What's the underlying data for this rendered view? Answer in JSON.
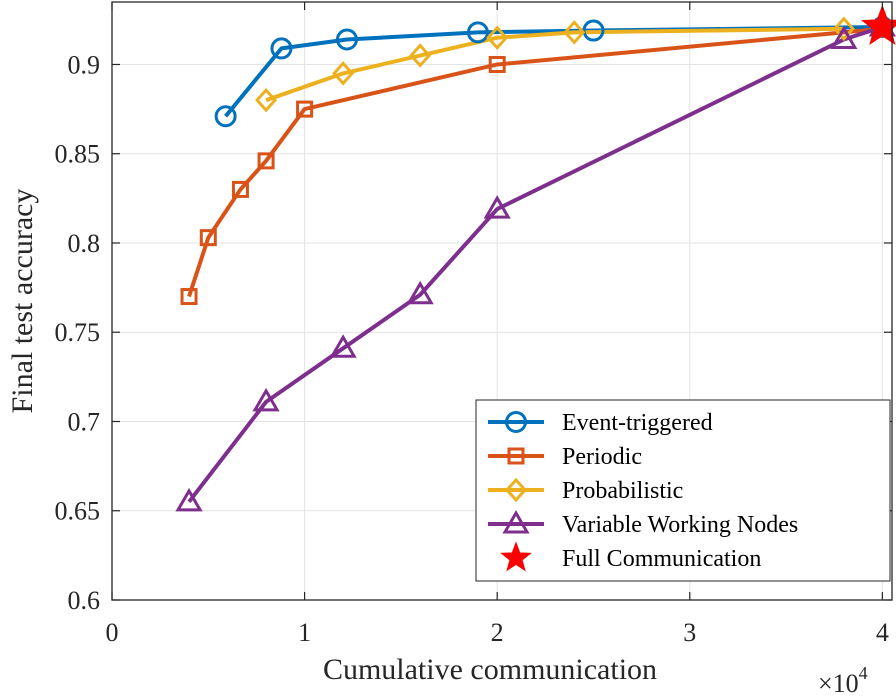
{
  "chart_data": {
    "type": "line",
    "xlabel": "Cumulative communication",
    "ylabel": "Final test accuracy",
    "x_multiplier": {
      "base": "×10",
      "exponent": "4"
    },
    "xlim": [
      0,
      4.05
    ],
    "ylim": [
      0.6,
      0.935
    ],
    "x_ticks": [
      0,
      1,
      2,
      3,
      4
    ],
    "x_tick_labels": [
      "0",
      "1",
      "2",
      "3",
      "4"
    ],
    "y_ticks": [
      0.6,
      0.65,
      0.7,
      0.75,
      0.8,
      0.85,
      0.9
    ],
    "y_tick_labels": [
      "0.6",
      "0.65",
      "0.7",
      "0.75",
      "0.8",
      "0.85",
      "0.9"
    ],
    "grid": true,
    "legend_position": "bottom-right",
    "series": [
      {
        "name": "Event-triggered",
        "color": "#0072BD",
        "marker": "circle",
        "x": [
          0.59,
          0.88,
          1.22,
          1.9,
          2.5,
          4.0
        ],
        "y": [
          0.871,
          0.909,
          0.914,
          0.918,
          0.919,
          0.921
        ]
      },
      {
        "name": "Periodic",
        "color": "#D95319",
        "marker": "square",
        "x": [
          0.4,
          0.5,
          0.667,
          0.8,
          1.0,
          2.0,
          4.0
        ],
        "y": [
          0.77,
          0.803,
          0.83,
          0.846,
          0.875,
          0.9,
          0.92
        ]
      },
      {
        "name": "Probabilistic",
        "color": "#EDB120",
        "marker": "diamond",
        "x": [
          0.8,
          1.2,
          1.6,
          2.0,
          2.4,
          3.8
        ],
        "y": [
          0.88,
          0.895,
          0.905,
          0.915,
          0.918,
          0.92
        ]
      },
      {
        "name": "Variable Working Nodes",
        "color": "#7E2F8E",
        "marker": "triangle",
        "x": [
          0.4,
          0.8,
          1.2,
          1.6,
          2.0,
          3.8,
          4.0
        ],
        "y": [
          0.655,
          0.711,
          0.741,
          0.771,
          0.819,
          0.914,
          0.921
        ]
      },
      {
        "name": "Full Communication",
        "color": "#FF0000",
        "marker": "star",
        "x": [
          4.0
        ],
        "y": [
          0.921
        ]
      }
    ]
  }
}
